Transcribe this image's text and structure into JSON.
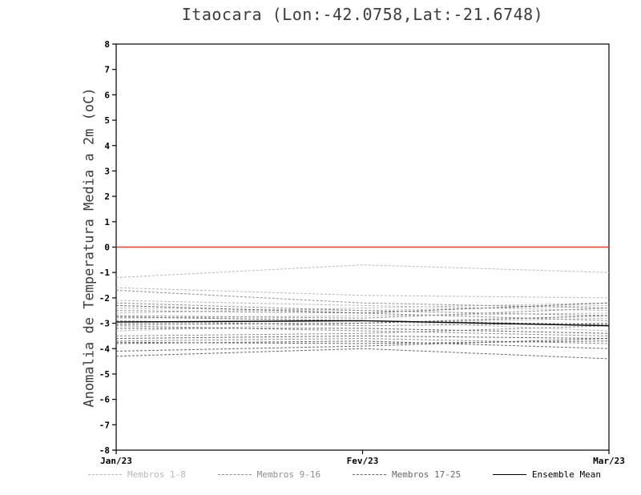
{
  "chart_data": {
    "type": "line",
    "title": "Itaocara (Lon:-42.0758,Lat:-21.6748)",
    "ylabel": "Anomalia de Temperatura Media a 2m (oC)",
    "xlabel": "",
    "ylim": [
      -8,
      8
    ],
    "ytick_step": 1,
    "grid": false,
    "x_categories": [
      "Jan/23",
      "Fev/23",
      "Mar/23"
    ],
    "zero_line": {
      "y": 0,
      "color": "#e23c30"
    },
    "series": [
      {
        "name": "Membro 1",
        "group": "Membros 1-8",
        "color": "#b8b8b8",
        "dash": true,
        "values": [
          -1.2,
          -0.7,
          -1.0
        ]
      },
      {
        "name": "Membro 2",
        "group": "Membros 1-8",
        "color": "#b8b8b8",
        "dash": true,
        "values": [
          -1.6,
          -1.9,
          -2.0
        ]
      },
      {
        "name": "Membro 3",
        "group": "Membros 1-8",
        "color": "#b8b8b8",
        "dash": true,
        "values": [
          -2.1,
          -2.3,
          -2.5
        ]
      },
      {
        "name": "Membro 4",
        "group": "Membros 1-8",
        "color": "#b8b8b8",
        "dash": true,
        "values": [
          -2.4,
          -2.5,
          -2.3
        ]
      },
      {
        "name": "Membro 5",
        "group": "Membros 1-8",
        "color": "#b8b8b8",
        "dash": true,
        "values": [
          -2.6,
          -2.4,
          -2.2
        ]
      },
      {
        "name": "Membro 6",
        "group": "Membros 1-8",
        "color": "#b8b8b8",
        "dash": true,
        "values": [
          -2.8,
          -2.7,
          -2.6
        ]
      },
      {
        "name": "Membro 7",
        "group": "Membros 1-8",
        "color": "#b8b8b8",
        "dash": true,
        "values": [
          -3.0,
          -2.9,
          -3.3
        ]
      },
      {
        "name": "Membro 8",
        "group": "Membros 1-8",
        "color": "#b8b8b8",
        "dash": true,
        "values": [
          -3.3,
          -3.0,
          -2.8
        ]
      },
      {
        "name": "Membro 9",
        "group": "Membros 9-16",
        "color": "#8e8e8e",
        "dash": true,
        "values": [
          -1.7,
          -2.2,
          -2.4
        ]
      },
      {
        "name": "Membro 10",
        "group": "Membros 9-16",
        "color": "#8e8e8e",
        "dash": true,
        "values": [
          -2.2,
          -2.5,
          -2.7
        ]
      },
      {
        "name": "Membro 11",
        "group": "Membros 9-16",
        "color": "#8e8e8e",
        "dash": true,
        "values": [
          -2.5,
          -2.6,
          -2.9
        ]
      },
      {
        "name": "Membro 12",
        "group": "Membros 9-16",
        "color": "#8e8e8e",
        "dash": true,
        "values": [
          -2.7,
          -2.8,
          -2.4
        ]
      },
      {
        "name": "Membro 13",
        "group": "Membros 9-16",
        "color": "#8e8e8e",
        "dash": true,
        "values": [
          -2.9,
          -3.1,
          -3.0
        ]
      },
      {
        "name": "Membro 14",
        "group": "Membros 9-16",
        "color": "#8e8e8e",
        "dash": true,
        "values": [
          -3.1,
          -3.3,
          -3.5
        ]
      },
      {
        "name": "Membro 15",
        "group": "Membros 9-16",
        "color": "#8e8e8e",
        "dash": true,
        "values": [
          -3.5,
          -3.4,
          -3.1
        ]
      },
      {
        "name": "Membro 16",
        "group": "Membros 9-16",
        "color": "#8e8e8e",
        "dash": true,
        "values": [
          -3.7,
          -3.6,
          -3.8
        ]
      },
      {
        "name": "Membro 17",
        "group": "Membros 17-25",
        "color": "#666666",
        "dash": true,
        "values": [
          -2.3,
          -2.6,
          -2.2
        ]
      },
      {
        "name": "Membro 18",
        "group": "Membros 17-25",
        "color": "#666666",
        "dash": true,
        "values": [
          -2.75,
          -2.9,
          -3.05
        ]
      },
      {
        "name": "Membro 19",
        "group": "Membros 17-25",
        "color": "#666666",
        "dash": true,
        "values": [
          -3.05,
          -3.0,
          -2.7
        ]
      },
      {
        "name": "Membro 20",
        "group": "Membros 17-25",
        "color": "#666666",
        "dash": true,
        "values": [
          -3.2,
          -3.2,
          -3.4
        ]
      },
      {
        "name": "Membro 21",
        "group": "Membros 17-25",
        "color": "#666666",
        "dash": true,
        "values": [
          -3.6,
          -3.5,
          -3.6
        ]
      },
      {
        "name": "Membro 22",
        "group": "Membros 17-25",
        "color": "#666666",
        "dash": true,
        "values": [
          -3.75,
          -3.8,
          -3.7
        ]
      },
      {
        "name": "Membro 23",
        "group": "Membros 17-25",
        "color": "#666666",
        "dash": true,
        "values": [
          -3.8,
          -3.7,
          -4.0
        ]
      },
      {
        "name": "Membro 24",
        "group": "Membros 17-25",
        "color": "#666666",
        "dash": true,
        "values": [
          -4.1,
          -3.9,
          -3.6
        ]
      },
      {
        "name": "Membro 25",
        "group": "Membros 17-25",
        "color": "#666666",
        "dash": true,
        "values": [
          -4.3,
          -4.0,
          -4.4
        ]
      },
      {
        "name": "Ensemble Mean",
        "group": "mean",
        "color": "#000000",
        "dash": false,
        "values": [
          -2.95,
          -2.9,
          -3.1
        ]
      }
    ],
    "legend_position": "bottom",
    "legend": [
      {
        "label": "Membros 1-8",
        "color": "#b8b8b8",
        "dash": true
      },
      {
        "label": "Membros 9-16",
        "color": "#8e8e8e",
        "dash": true
      },
      {
        "label": "Membros 17-25",
        "color": "#666666",
        "dash": true
      },
      {
        "label": "Ensemble Mean",
        "color": "#000000",
        "dash": false
      }
    ]
  }
}
